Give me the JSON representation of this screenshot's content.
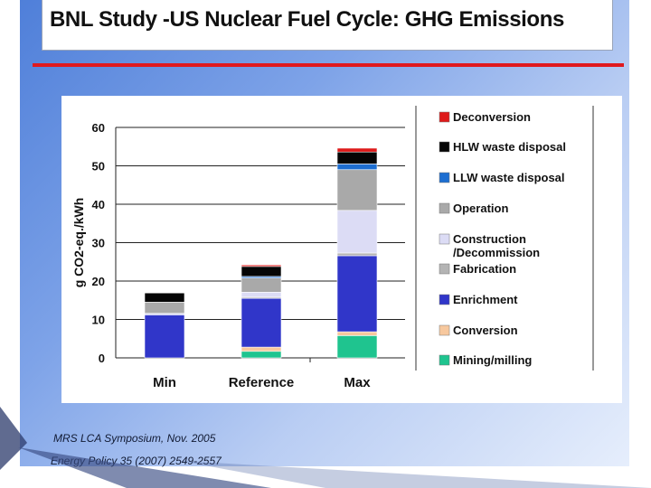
{
  "slide": {
    "title": "BNL Study -US Nuclear Fuel Cycle:  GHG Emissions",
    "accent_color": "#e0191e",
    "credits": [
      "MRS LCA Symposium, Nov.  2005",
      "Energy Policy  35 (2007) 2549-2557"
    ]
  },
  "chart_data": {
    "type": "bar",
    "stacked": true,
    "title": "",
    "xlabel": "",
    "ylabel": "g CO2-eq./kWh",
    "ylim": [
      0,
      60
    ],
    "yticks": [
      0,
      10,
      20,
      30,
      40,
      50,
      60
    ],
    "grid": true,
    "legend_position": "right",
    "categories": [
      "Min",
      "Reference",
      "Max"
    ],
    "series": [
      {
        "name": "Mining/milling",
        "color": "#1fc48f",
        "values": [
          0,
          1.7,
          5.8
        ]
      },
      {
        "name": "Conversion",
        "color": "#f7c89e",
        "values": [
          0,
          1.1,
          1.0
        ]
      },
      {
        "name": "Enrichment",
        "color": "#3036c9",
        "values": [
          11.2,
          12.7,
          19.8
        ]
      },
      {
        "name": "Fabrication",
        "color": "#b4b4b4",
        "values": [
          0,
          0.3,
          0.7
        ]
      },
      {
        "name": "Construction\n/Decommission",
        "color": "#dcdcf5",
        "values": [
          0.4,
          1.3,
          11.1
        ]
      },
      {
        "name": "Operation",
        "color": "#a9a9a9",
        "values": [
          2.9,
          3.7,
          10.6
        ]
      },
      {
        "name": "LLW waste disposal",
        "color": "#1d6ed1",
        "values": [
          0,
          0.4,
          1.5
        ]
      },
      {
        "name": "HLW waste disposal",
        "color": "#050505",
        "values": [
          2.4,
          2.6,
          3.1
        ]
      },
      {
        "name": "Deconversion",
        "color": "#de1a1a",
        "values": [
          0,
          0.4,
          1.0
        ]
      }
    ]
  }
}
